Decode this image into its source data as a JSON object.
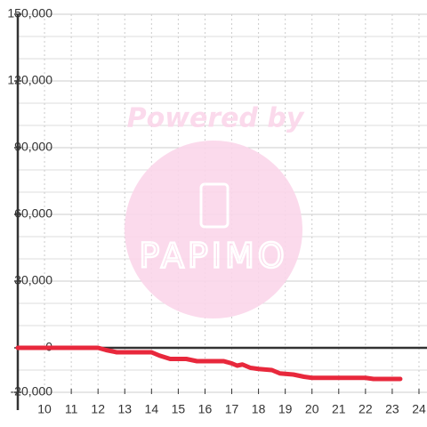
{
  "chart_data": {
    "type": "line",
    "watermark": {
      "title": "Powered by",
      "logo": "PAPIMO"
    },
    "x": [
      9,
      12,
      12.3,
      12.7,
      14,
      14.3,
      14.7,
      15.3,
      15.7,
      16.7,
      17,
      17.2,
      17.4,
      17.7,
      18,
      18.5,
      18.8,
      19.3,
      19.7,
      20,
      21,
      22,
      22.3,
      23.3
    ],
    "series": [
      {
        "color": "#e8283c",
        "values": [
          0,
          0,
          -1000,
          -2000,
          -2000,
          -3500,
          -5000,
          -5000,
          -6000,
          -6000,
          -7000,
          -8000,
          -7500,
          -9000,
          -9500,
          -10000,
          -11500,
          -12000,
          -13000,
          -13500,
          -13500,
          -13500,
          -14000,
          -14000
        ]
      }
    ],
    "xlim": [
      9,
      24.3
    ],
    "xticks": [
      10,
      11,
      12,
      13,
      14,
      15,
      16,
      17,
      18,
      19,
      20,
      21,
      22,
      23,
      24
    ],
    "ylim": [
      -20000,
      150000
    ],
    "yticks": [
      {
        "value": 150000,
        "label": "150,000"
      },
      {
        "value": 120000,
        "label": "120,000"
      },
      {
        "value": 90000,
        "label": "90,000"
      },
      {
        "value": 60000,
        "label": "60,000"
      },
      {
        "value": 30000,
        "label": "30,000"
      },
      0,
      {
        "value": -20000,
        "label": "-20,000"
      }
    ],
    "yminor": [
      140000,
      130000,
      110000,
      100000,
      80000,
      70000,
      50000,
      40000,
      20000,
      10000,
      -10000
    ],
    "grid": true
  }
}
